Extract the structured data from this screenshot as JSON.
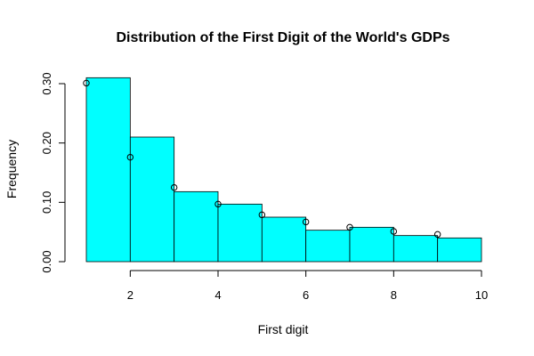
{
  "chart_data": {
    "type": "bar",
    "title": "Distribution of the First Digit of the World's GDPs",
    "xlabel": "First digit",
    "ylabel": "Frequency",
    "xlim": [
      1,
      10
    ],
    "ylim": [
      0,
      0.31
    ],
    "x_ticks": [
      2,
      4,
      6,
      8,
      10
    ],
    "x_tick_labels": [
      "2",
      "4",
      "6",
      "8",
      "10"
    ],
    "y_ticks": [
      0,
      0.1,
      0.2,
      0.3
    ],
    "y_tick_labels": [
      "0.00",
      "0.10",
      "0.20",
      "0.30"
    ],
    "grid": false,
    "bar_color": "#00FFFF",
    "bins": [
      {
        "start": 1,
        "end": 2,
        "value": 0.31
      },
      {
        "start": 2,
        "end": 3,
        "value": 0.21
      },
      {
        "start": 3,
        "end": 4,
        "value": 0.118
      },
      {
        "start": 4,
        "end": 5,
        "value": 0.097
      },
      {
        "start": 5,
        "end": 6,
        "value": 0.075
      },
      {
        "start": 6,
        "end": 7,
        "value": 0.053
      },
      {
        "start": 7,
        "end": 8,
        "value": 0.058
      },
      {
        "start": 8,
        "end": 9,
        "value": 0.044
      },
      {
        "start": 9,
        "end": 10,
        "value": 0.04
      }
    ],
    "benford_points": {
      "x": [
        1,
        2,
        3,
        4,
        5,
        6,
        7,
        8,
        9
      ],
      "y": [
        0.301,
        0.176,
        0.125,
        0.097,
        0.079,
        0.067,
        0.058,
        0.051,
        0.046
      ]
    }
  }
}
